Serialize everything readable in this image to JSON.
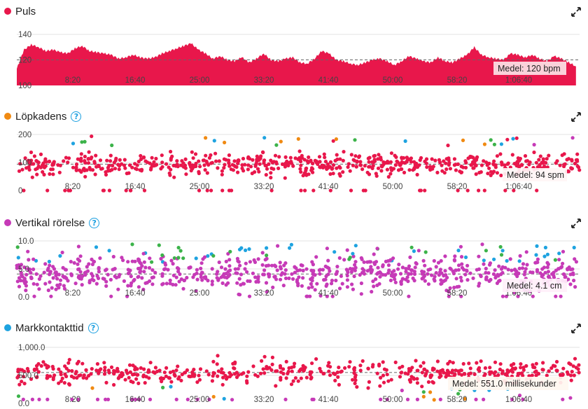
{
  "panels": {
    "puls": {
      "title": "Puls",
      "color": "#e8174b"
    },
    "kadens": {
      "title": "Löpkadens",
      "color": "#f08a12"
    },
    "vertikal": {
      "title": "Vertikal rörelse",
      "color": "#c63ab7"
    },
    "mark": {
      "title": "Markkontakttid",
      "color": "#1ea3e0"
    }
  },
  "help_icon": "question-circle-icon",
  "expand_icon": "expand-arrows-icon",
  "chart_data": [
    {
      "type": "area",
      "title": "Puls",
      "yticks": [
        "100",
        "120",
        "140"
      ],
      "ylim": [
        100,
        145
      ],
      "xticks": [
        "8:20",
        "16:40",
        "25:00",
        "33:20",
        "41:40",
        "50:00",
        "58:20",
        "1:06:40"
      ],
      "xlim_seconds": [
        0,
        4650
      ],
      "average": 120,
      "average_label": "Medel: 120 bpm",
      "color": "#e8174b",
      "series": [
        {
          "x": [
            0,
            60,
            120,
            180,
            240,
            300,
            360,
            420,
            480,
            540,
            600,
            660,
            720,
            780,
            840,
            900,
            960,
            1020,
            1080,
            1140,
            1200,
            1260,
            1320,
            1380,
            1440,
            1500,
            1560,
            1620,
            1680,
            1740,
            1800,
            1860,
            1920,
            1980,
            2040,
            2100,
            2160,
            2220,
            2280,
            2340,
            2400,
            2460,
            2520,
            2580,
            2640,
            2700,
            2760,
            2820,
            2880,
            2940,
            3000,
            3060,
            3120,
            3180,
            3240,
            3300,
            3360,
            3420,
            3480,
            3540,
            3600,
            3660,
            3720,
            3780,
            3840,
            3900,
            3960,
            4020,
            4080,
            4140,
            4200,
            4260,
            4320,
            4380,
            4440,
            4500,
            4560,
            4620
          ],
          "y": [
            113,
            128,
            132,
            130,
            127,
            128,
            126,
            125,
            129,
            131,
            127,
            126,
            125,
            124,
            121,
            122,
            124,
            122,
            121,
            122,
            125,
            127,
            129,
            131,
            133,
            128,
            125,
            121,
            123,
            120,
            119,
            122,
            118,
            121,
            125,
            120,
            119,
            121,
            122,
            118,
            117,
            121,
            127,
            125,
            120,
            119,
            117,
            116,
            118,
            120,
            121,
            119,
            116,
            119,
            123,
            121,
            119,
            118,
            122,
            119,
            118,
            121,
            124,
            130,
            124,
            122,
            121,
            120,
            125,
            124,
            122,
            124,
            121,
            119,
            123,
            121,
            118,
            115
          ]
        }
      ]
    },
    {
      "type": "scatter",
      "title": "Löpkadens",
      "yticks": [
        "0",
        "100",
        "200"
      ],
      "ylim": [
        0,
        200
      ],
      "xticks": [
        "8:20",
        "16:40",
        "25:00",
        "33:20",
        "41:40",
        "50:00",
        "58:20",
        "1:06:40"
      ],
      "average": 94,
      "average_label": "Medel: 94 spm",
      "band_colors": [
        "#e8174b",
        "#f08a12",
        "#3cb34a",
        "#1ea3e0",
        "#c63ab7"
      ]
    },
    {
      "type": "scatter",
      "title": "Vertikal rörelse",
      "yticks": [
        "0.0",
        "5.0",
        "10.0"
      ],
      "ylim": [
        0,
        10
      ],
      "xticks": [
        "8:20",
        "16:40",
        "25:00",
        "33:20",
        "41:40",
        "50:00",
        "58:20",
        "1:06:40"
      ],
      "average": 4.1,
      "average_label": "Medel: 4.1 cm",
      "band_colors": [
        "#c63ab7",
        "#e8174b",
        "#1ea3e0",
        "#3cb34a"
      ]
    },
    {
      "type": "scatter",
      "title": "Markkontakttid",
      "yticks": [
        "0.0",
        "500.0",
        "1,000.0"
      ],
      "ylim": [
        0,
        1000
      ],
      "xticks": [
        "8:20",
        "16:40",
        "25:00",
        "33:20",
        "41:40",
        "50:00",
        "58:20",
        "1:06:40"
      ],
      "average": 551.0,
      "average_label": "Medel: 551.0 millisekunder",
      "band_colors": [
        "#e8174b",
        "#c63ab7",
        "#f08a12",
        "#1ea3e0",
        "#3cb34a"
      ]
    }
  ]
}
